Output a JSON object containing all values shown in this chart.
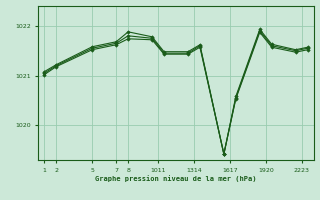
{
  "title": "Graphe pression niveau de la mer (hPa)",
  "bg_color": "#cce8d8",
  "grid_color": "#99ccb0",
  "line_color": "#1a5c1a",
  "marker_color": "#1a5c1a",
  "xlim": [
    0.5,
    23.5
  ],
  "ylim": [
    1019.3,
    1022.4
  ],
  "yticks": [
    1020,
    1021,
    1022
  ],
  "lines": [
    {
      "x": [
        1,
        2,
        5,
        7,
        8,
        10,
        11,
        13,
        14,
        16,
        17,
        19,
        20,
        22,
        23
      ],
      "y": [
        1021.05,
        1021.2,
        1021.55,
        1021.65,
        1021.8,
        1021.75,
        1021.45,
        1021.45,
        1021.6,
        1019.42,
        1020.55,
        1021.9,
        1021.6,
        1021.5,
        1021.55
      ]
    },
    {
      "x": [
        1,
        2,
        5,
        7,
        8,
        10,
        11,
        13,
        14,
        16,
        17,
        19,
        20,
        22,
        23
      ],
      "y": [
        1021.08,
        1021.22,
        1021.58,
        1021.68,
        1021.88,
        1021.78,
        1021.48,
        1021.48,
        1021.62,
        1019.42,
        1020.58,
        1021.93,
        1021.63,
        1021.52,
        1021.57
      ]
    },
    {
      "x": [
        1,
        2,
        5,
        7,
        8,
        10,
        11,
        13,
        14,
        16,
        17,
        19,
        20,
        22,
        23
      ],
      "y": [
        1021.02,
        1021.18,
        1021.52,
        1021.62,
        1021.74,
        1021.72,
        1021.43,
        1021.43,
        1021.57,
        1019.42,
        1020.53,
        1021.87,
        1021.57,
        1021.47,
        1021.52
      ]
    }
  ],
  "xlabel_groups": [
    {
      "label": "1",
      "x": 1
    },
    {
      "label": "2",
      "x": 2
    },
    {
      "label": "5",
      "x": 5
    },
    {
      "label": "7",
      "x": 7
    },
    {
      "label": "8",
      "x": 8
    },
    {
      "label": "1011",
      "x": 10.5
    },
    {
      "label": "1314",
      "x": 13.5
    },
    {
      "label": "1617",
      "x": 16.5
    },
    {
      "label": "1920",
      "x": 19.5
    },
    {
      "label": "2223",
      "x": 22.5
    }
  ]
}
